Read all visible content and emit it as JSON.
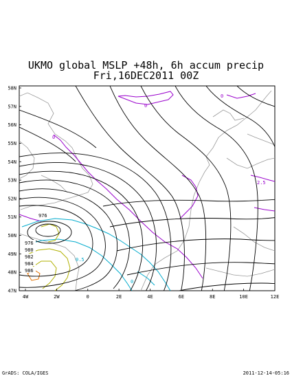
{
  "title": {
    "line1": "UKMO global MSLP +48h, 6h accum precip",
    "line2": "Fri,16DEC2011 00Z"
  },
  "axes": {
    "lat_labels": [
      "58N",
      "57N",
      "56N",
      "55N",
      "54N",
      "53N",
      "52N",
      "51N",
      "50N",
      "49N",
      "48N",
      "47N"
    ],
    "lon_labels": [
      "4W",
      "2W",
      "0",
      "2E",
      "4E",
      "6E",
      "8E",
      "10E",
      "12E"
    ]
  },
  "contour_labels": {
    "isobars": [
      "976",
      "976",
      "980",
      "982",
      "984",
      "986"
    ],
    "precip": [
      "0",
      "0",
      "0",
      "2.5",
      "0",
      "0.5"
    ]
  },
  "footer": {
    "credit": "GrADS: COLA/IGES",
    "timestamp": "2011-12-14-05:16"
  },
  "colors": {
    "isobar": "#000000",
    "coast": "#9a9a9a",
    "precip_low": "#9900cc",
    "precip_mid": "#00aacc",
    "precip_high": "#b0b000"
  }
}
